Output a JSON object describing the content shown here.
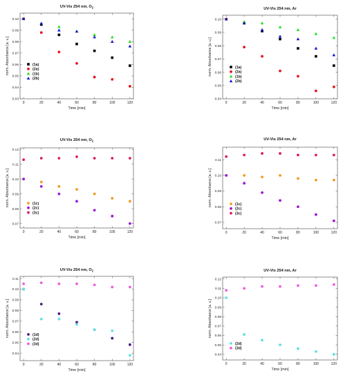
{
  "chart_data": [
    {
      "type": "scatter",
      "title": "UV-Vis 254 nm, O",
      "title_subscript": "2",
      "xlabel": "Time [min]",
      "ylabel": "norm. Absorbance [a. u.]",
      "xlim": [
        -4,
        124
      ],
      "ylim": [
        0.03,
        0.105
      ],
      "xticks": [
        0,
        20,
        40,
        60,
        80,
        100,
        120
      ],
      "yticks": [
        0.03,
        0.04,
        0.05,
        0.06,
        0.07,
        0.08,
        0.09,
        0.1
      ],
      "ytick_labels": [
        "0.03",
        "0.04",
        "0.05",
        "0.06",
        "0.07",
        "0.08",
        "0.09",
        "0.10"
      ],
      "legend_placement": "lower-left",
      "series": [
        {
          "name": "(1a)",
          "color": "#000000",
          "marker": "square",
          "x": [
            0,
            20,
            40,
            60,
            80,
            100,
            120
          ],
          "values": [
            0.1,
            0.095,
            0.086,
            0.078,
            0.072,
            0.066,
            0.059
          ]
        },
        {
          "name": "(2a)",
          "color": "#e8141b",
          "marker": "circle",
          "x": [
            0,
            20,
            40,
            60,
            80,
            100,
            120
          ],
          "values": [
            0.1,
            0.088,
            0.071,
            0.061,
            0.049,
            0.047,
            0.041
          ]
        },
        {
          "name": "(1b)",
          "color": "#22dd22",
          "marker": "triangle",
          "x": [
            0,
            20,
            40,
            60,
            80,
            100,
            120
          ],
          "values": [
            0.1,
            0.096,
            0.093,
            0.089,
            0.086,
            0.084,
            0.08
          ]
        },
        {
          "name": "(2b)",
          "color": "#1515cc",
          "marker": "triangle",
          "x": [
            0,
            20,
            40,
            60,
            80,
            100,
            120
          ],
          "values": [
            0.1,
            0.096,
            0.09,
            0.089,
            0.084,
            0.08,
            0.076
          ]
        }
      ]
    },
    {
      "type": "scatter",
      "title": "UV-Vis 254 nm, Ar",
      "xlabel": "Time [min]",
      "ylabel": "norm. Absorbance [a. u.]",
      "xlim": [
        -4,
        124
      ],
      "ylim": [
        0.04,
        0.103
      ],
      "xticks": [
        0,
        20,
        40,
        60,
        80,
        100,
        120
      ],
      "yticks": [
        0.04,
        0.05,
        0.06,
        0.07,
        0.08,
        0.09,
        0.1
      ],
      "ytick_labels": [
        "0.04",
        "0.05",
        "0.06",
        "0.07",
        "0.08",
        "0.09",
        "0.10"
      ],
      "legend_placement": "lower-left",
      "series": [
        {
          "name": "(1a)",
          "color": "#000000",
          "marker": "square",
          "x": [
            0,
            20,
            40,
            60,
            80,
            100,
            120
          ],
          "values": [
            0.1,
            0.097,
            0.091,
            0.085,
            0.078,
            0.072,
            0.065
          ]
        },
        {
          "name": "(2a)",
          "color": "#e8141b",
          "marker": "circle",
          "x": [
            0,
            20,
            40,
            60,
            80,
            100,
            120
          ],
          "values": [
            0.1,
            0.079,
            0.072,
            0.061,
            0.057,
            0.046,
            0.049
          ]
        },
        {
          "name": "(1b)",
          "color": "#22dd22",
          "marker": "triangle",
          "x": [
            0,
            20,
            40,
            60,
            80,
            100,
            120
          ],
          "values": [
            0.1,
            0.098,
            0.097,
            0.094,
            0.092,
            0.089,
            0.086
          ]
        },
        {
          "name": "(2b)",
          "color": "#1515cc",
          "marker": "triangle",
          "x": [
            0,
            20,
            40,
            60,
            80,
            100,
            120
          ],
          "values": [
            0.1,
            0.097,
            0.092,
            0.087,
            0.085,
            0.078,
            0.073
          ]
        }
      ]
    },
    {
      "type": "scatter",
      "title": "UV-Vis 254 nm, O",
      "title_subscript": "2",
      "xlabel": "Time [min]",
      "ylabel": "norm. Absorbance [a. u.]",
      "xlim": [
        -4,
        124
      ],
      "ylim": [
        0.067,
        0.121
      ],
      "xticks": [
        0,
        20,
        40,
        60,
        80,
        100,
        120
      ],
      "yticks": [
        0.07,
        0.08,
        0.09,
        0.1,
        0.11,
        0.12
      ],
      "ytick_labels": [
        "0.07",
        "0.08",
        "0.09",
        "0.10",
        "0.11",
        "0.12"
      ],
      "legend_placement": "lower-left",
      "series": [
        {
          "name": "(1c)",
          "color": "#f39a1e",
          "marker": "circle",
          "x": [
            0,
            20,
            40,
            60,
            80,
            100,
            120
          ],
          "values": [
            0.1,
            0.098,
            0.095,
            0.093,
            0.09,
            0.087,
            0.085
          ]
        },
        {
          "name": "(2c)",
          "color": "#9a18d8",
          "marker": "circle",
          "x": [
            0,
            20,
            40,
            60,
            80,
            100,
            120
          ],
          "values": [
            0.1,
            0.095,
            0.09,
            0.085,
            0.079,
            0.075,
            0.07
          ]
        },
        {
          "name": "(3c)",
          "color": "#e0186a",
          "marker": "circle",
          "x": [
            0,
            20,
            40,
            60,
            80,
            100,
            120
          ],
          "values": [
            0.113,
            0.114,
            0.114,
            0.115,
            0.114,
            0.114,
            0.114
          ]
        }
      ]
    },
    {
      "type": "scatter",
      "title": "UV-Vis 254 nm, Ar",
      "xlabel": "Time [min]",
      "ylabel": "norm. Absorbance [a. u.]",
      "xlim": [
        -4,
        124
      ],
      "ylim": [
        0.066,
        0.118
      ],
      "xticks": [
        0,
        20,
        40,
        60,
        80,
        100,
        120
      ],
      "yticks": [
        0.07,
        0.08,
        0.09,
        0.1,
        0.11
      ],
      "ytick_labels": [
        "0.07",
        "0.08",
        "0.09",
        "0.10",
        "0.11"
      ],
      "legend_placement": "lower-left",
      "series": [
        {
          "name": "(1c)",
          "color": "#f39a1e",
          "marker": "circle",
          "x": [
            0,
            20,
            40,
            60,
            80,
            100,
            120
          ],
          "values": [
            0.1,
            0.1,
            0.099,
            0.1,
            0.098,
            0.097,
            0.097
          ]
        },
        {
          "name": "(2c)",
          "color": "#9a18d8",
          "marker": "circle",
          "x": [
            0,
            20,
            40,
            60,
            80,
            100,
            120
          ],
          "values": [
            0.1,
            0.095,
            0.089,
            0.084,
            0.08,
            0.075,
            0.071
          ]
        },
        {
          "name": "(3c)",
          "color": "#e0186a",
          "marker": "circle",
          "x": [
            0,
            20,
            40,
            60,
            80,
            100,
            120
          ],
          "values": [
            0.112,
            0.113,
            0.114,
            0.114,
            0.113,
            0.113,
            0.113
          ]
        }
      ]
    },
    {
      "type": "scatter",
      "title": "UV-Vis 254 nm, O",
      "title_subscript": "2",
      "xlabel": "Time [min]",
      "ylabel": "norm. Absorbance [a. u.]",
      "xlim": [
        -4,
        124
      ],
      "ylim": [
        0.033,
        0.112
      ],
      "xticks": [
        0,
        20,
        40,
        60,
        80,
        100,
        120
      ],
      "yticks": [
        0.04,
        0.05,
        0.06,
        0.07,
        0.08,
        0.09,
        0.1,
        0.11
      ],
      "ytick_labels": [
        "0.04",
        "0.05",
        "0.06",
        "0.07",
        "0.08",
        "0.09",
        "0.10",
        "0.11"
      ],
      "legend_placement": "lower-left",
      "series": [
        {
          "name": "(1d)",
          "color": "#4a1a8c",
          "marker": "circle",
          "x": [
            0,
            20,
            40,
            60,
            80,
            100,
            120
          ],
          "values": [
            0.1,
            0.086,
            0.077,
            0.069,
            0.062,
            0.054,
            0.048
          ]
        },
        {
          "name": "(2d)",
          "color": "#5ee0e6",
          "marker": "circle",
          "x": [
            0,
            20,
            40,
            60,
            80,
            100,
            120
          ],
          "values": [
            0.1,
            0.072,
            0.072,
            0.067,
            0.062,
            0.061,
            0.038
          ]
        },
        {
          "name": "(3d)",
          "color": "#ee5cdc",
          "marker": "circle",
          "x": [
            0,
            20,
            40,
            60,
            80,
            100,
            120
          ],
          "values": [
            0.105,
            0.106,
            0.105,
            0.105,
            0.104,
            0.102,
            0.102
          ]
        }
      ]
    },
    {
      "type": "scatter",
      "title": "UV-Vis 254 nm, Ar",
      "xlabel": "Time [min]",
      "ylabel": "norm. Absorbance [a. u.]",
      "xlim": [
        -4,
        124
      ],
      "ylim": [
        0.034,
        0.122
      ],
      "xticks": [
        0,
        20,
        40,
        60,
        80,
        100,
        120
      ],
      "yticks": [
        0.04,
        0.05,
        0.06,
        0.07,
        0.08,
        0.09,
        0.1,
        0.11,
        0.12
      ],
      "ytick_labels": [
        "0.04",
        "0.05",
        "0.06",
        "0.07",
        "0.08",
        "0.09",
        "0.10",
        "0.11",
        "0.12"
      ],
      "legend_placement": "lower-left",
      "series": [
        {
          "name": "(2d)",
          "color": "#5ee0e6",
          "marker": "circle",
          "x": [
            0,
            20,
            40,
            60,
            80,
            100,
            120
          ],
          "values": [
            0.1,
            0.061,
            0.055,
            0.05,
            0.046,
            0.043,
            0.04
          ]
        },
        {
          "name": "(3d)",
          "color": "#ee5cdc",
          "marker": "circle",
          "x": [
            0,
            20,
            40,
            60,
            80,
            100,
            120
          ],
          "values": [
            0.108,
            0.11,
            0.112,
            0.112,
            0.113,
            0.113,
            0.114
          ]
        }
      ]
    }
  ]
}
